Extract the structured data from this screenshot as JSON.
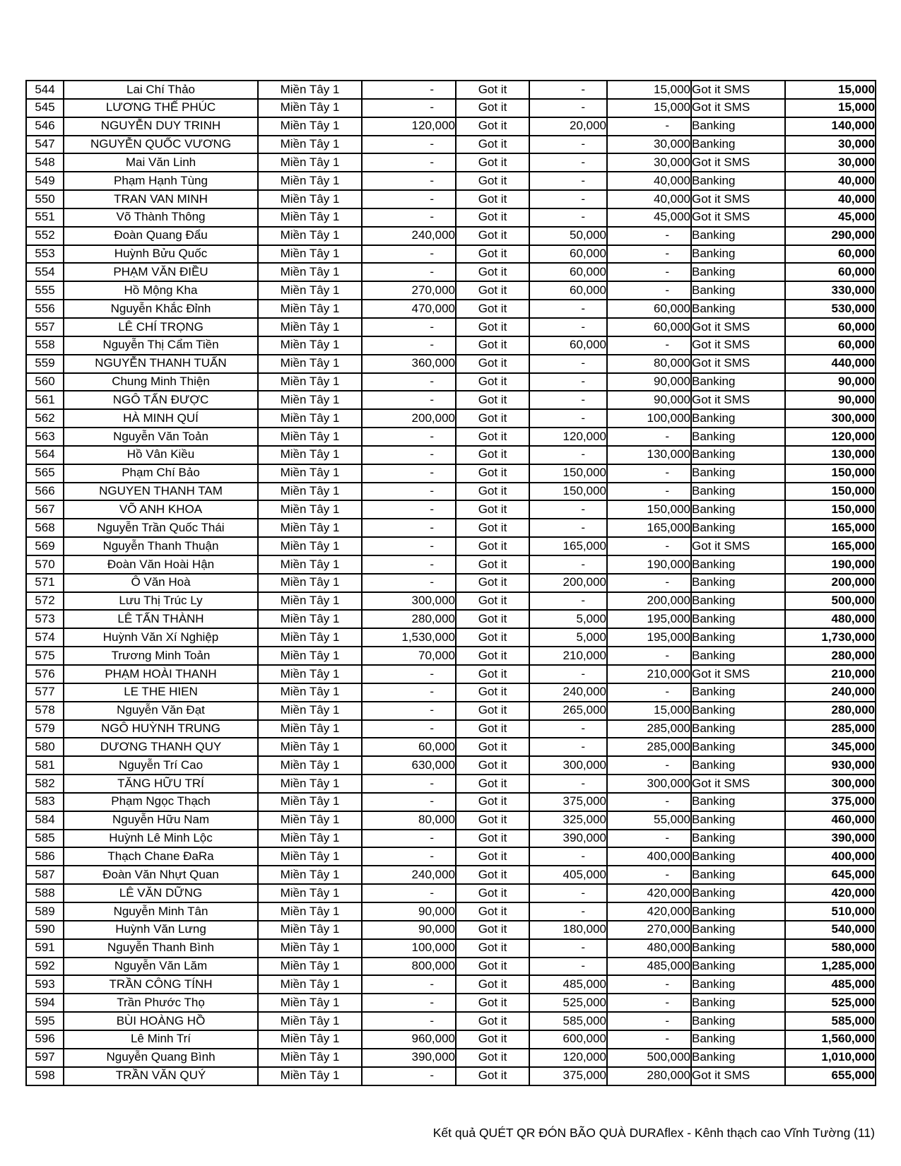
{
  "footer": {
    "text": "Kết quả QUÉT QR ĐÓN BÃO QUÀ DURAflex - Kênh thạch cao Vĩnh Tường (11)"
  },
  "table": {
    "rows": [
      [
        "544",
        "Lai Chí Thảo",
        "Miền Tây 1",
        "-",
        "Got it",
        "-",
        "15,000",
        "Got it SMS",
        "15,000"
      ],
      [
        "545",
        "LƯƠNG THẾ PHÚC",
        "Miền Tây 1",
        "-",
        "Got it",
        "-",
        "15,000",
        "Got it SMS",
        "15,000"
      ],
      [
        "546",
        "NGUYỄN DUY TRINH",
        "Miền Tây 1",
        "120,000",
        "Got it",
        "20,000",
        "-",
        "Banking",
        "140,000"
      ],
      [
        "547",
        "NGUYỄN QUỐC VƯƠNG",
        "Miền Tây 1",
        "-",
        "Got it",
        "-",
        "30,000",
        "Banking",
        "30,000"
      ],
      [
        "548",
        "Mai Văn Linh",
        "Miền Tây 1",
        "-",
        "Got it",
        "-",
        "30,000",
        "Got it SMS",
        "30,000"
      ],
      [
        "549",
        "Phạm Hạnh Tùng",
        "Miền Tây 1",
        "-",
        "Got it",
        "-",
        "40,000",
        "Banking",
        "40,000"
      ],
      [
        "550",
        "TRAN VAN MINH",
        "Miền Tây 1",
        "-",
        "Got it",
        "-",
        "40,000",
        "Got it SMS",
        "40,000"
      ],
      [
        "551",
        "Võ Thành Thông",
        "Miền Tây 1",
        "-",
        "Got it",
        "-",
        "45,000",
        "Got it SMS",
        "45,000"
      ],
      [
        "552",
        "Đoàn Quang Đẩu",
        "Miền Tây 1",
        "240,000",
        "Got it",
        "50,000",
        "-",
        "Banking",
        "290,000"
      ],
      [
        "553",
        "Huỳnh Bửu Quốc",
        "Miền Tây 1",
        "-",
        "Got it",
        "60,000",
        "-",
        "Banking",
        "60,000"
      ],
      [
        "554",
        "PHẠM VĂN ĐIỀU",
        "Miền Tây 1",
        "-",
        "Got it",
        "60,000",
        "-",
        "Banking",
        "60,000"
      ],
      [
        "555",
        "Hồ Mộng Kha",
        "Miền Tây 1",
        "270,000",
        "Got it",
        "60,000",
        "-",
        "Banking",
        "330,000"
      ],
      [
        "556",
        "Nguyễn Khắc Đỉnh",
        "Miền Tây 1",
        "470,000",
        "Got it",
        "-",
        "60,000",
        "Banking",
        "530,000"
      ],
      [
        "557",
        "LÊ CHÍ TRỌNG",
        "Miền Tây 1",
        "-",
        "Got it",
        "-",
        "60,000",
        "Got it SMS",
        "60,000"
      ],
      [
        "558",
        "Nguyễn Thị Cẩm Tiền",
        "Miền Tây 1",
        "-",
        "Got it",
        "60,000",
        "-",
        "Got it SMS",
        "60,000"
      ],
      [
        "559",
        "NGUYỄN THANH TUẤN",
        "Miền Tây 1",
        "360,000",
        "Got it",
        "-",
        "80,000",
        "Got it SMS",
        "440,000"
      ],
      [
        "560",
        "Chung Minh Thiện",
        "Miền Tây 1",
        "-",
        "Got it",
        "-",
        "90,000",
        "Banking",
        "90,000"
      ],
      [
        "561",
        "NGÔ TẤN ĐƯỢC",
        "Miền Tây 1",
        "-",
        "Got it",
        "-",
        "90,000",
        "Got it SMS",
        "90,000"
      ],
      [
        "562",
        "HÀ MINH QUÍ",
        "Miền Tây 1",
        "200,000",
        "Got it",
        "-",
        "100,000",
        "Banking",
        "300,000"
      ],
      [
        "563",
        "Nguyễn Văn Toản",
        "Miền Tây 1",
        "-",
        "Got it",
        "120,000",
        "-",
        "Banking",
        "120,000"
      ],
      [
        "564",
        "Hồ Vân Kiều",
        "Miền Tây 1",
        "-",
        "Got it",
        "-",
        "130,000",
        "Banking",
        "130,000"
      ],
      [
        "565",
        "Phạm  Chí Bảo",
        "Miền Tây 1",
        "-",
        "Got it",
        "150,000",
        "-",
        "Banking",
        "150,000"
      ],
      [
        "566",
        "NGUYEN THANH TAM",
        "Miền Tây 1",
        "-",
        "Got it",
        "150,000",
        "-",
        "Banking",
        "150,000"
      ],
      [
        "567",
        "VÕ ANH KHOA",
        "Miền Tây 1",
        "-",
        "Got it",
        "-",
        "150,000",
        "Banking",
        "150,000"
      ],
      [
        "568",
        "Nguyễn Trần Quốc Thái",
        "Miền Tây 1",
        "-",
        "Got it",
        "-",
        "165,000",
        "Banking",
        "165,000"
      ],
      [
        "569",
        "Nguyễn Thanh Thuận",
        "Miền Tây 1",
        "-",
        "Got it",
        "165,000",
        "-",
        "Got it SMS",
        "165,000"
      ],
      [
        "570",
        "Đoàn Văn Hoài Hận",
        "Miền Tây 1",
        "-",
        "Got it",
        "-",
        "190,000",
        "Banking",
        "190,000"
      ],
      [
        "571",
        "Ô Văn Hoà",
        "Miền Tây 1",
        "-",
        "Got it",
        "200,000",
        "-",
        "Banking",
        "200,000"
      ],
      [
        "572",
        "Lưu Thị Trúc Ly",
        "Miền Tây 1",
        "300,000",
        "Got it",
        "-",
        "200,000",
        "Banking",
        "500,000"
      ],
      [
        "573",
        "LÊ TẤN THÀNH",
        "Miền Tây 1",
        "280,000",
        "Got it",
        "5,000",
        "195,000",
        "Banking",
        "480,000"
      ],
      [
        "574",
        "Huỳnh Văn Xí Nghiệp",
        "Miền Tây 1",
        "1,530,000",
        "Got it",
        "5,000",
        "195,000",
        "Banking",
        "1,730,000"
      ],
      [
        "575",
        "Trương Minh Toản",
        "Miền Tây 1",
        "70,000",
        "Got it",
        "210,000",
        "-",
        "Banking",
        "280,000"
      ],
      [
        "576",
        "PHẠM HOÀI THANH",
        "Miền Tây 1",
        "-",
        "Got it",
        "-",
        "210,000",
        "Got it SMS",
        "210,000"
      ],
      [
        "577",
        "LE THE HIEN",
        "Miền Tây 1",
        "-",
        "Got it",
        "240,000",
        "-",
        "Banking",
        "240,000"
      ],
      [
        "578",
        "Nguyễn Văn Đạt",
        "Miền Tây 1",
        "-",
        "Got it",
        "265,000",
        "15,000",
        "Banking",
        "280,000"
      ],
      [
        "579",
        "NGÔ HUỲNH TRUNG",
        "Miền Tây 1",
        "-",
        "Got it",
        "-",
        "285,000",
        "Banking",
        "285,000"
      ],
      [
        "580",
        "DƯƠNG THANH QUY",
        "Miền Tây 1",
        "60,000",
        "Got it",
        "-",
        "285,000",
        "Banking",
        "345,000"
      ],
      [
        "581",
        "Nguyễn Trí Cao",
        "Miền Tây 1",
        "630,000",
        "Got it",
        "300,000",
        "-",
        "Banking",
        "930,000"
      ],
      [
        "582",
        "TĂNG HỮU TRÍ",
        "Miền Tây 1",
        "-",
        "Got it",
        "-",
        "300,000",
        "Got it SMS",
        "300,000"
      ],
      [
        "583",
        "Phạm Ngọc Thạch",
        "Miền Tây 1",
        "-",
        "Got it",
        "375,000",
        "-",
        "Banking",
        "375,000"
      ],
      [
        "584",
        "Nguyễn Hữu Nam",
        "Miền Tây 1",
        "80,000",
        "Got it",
        "325,000",
        "55,000",
        "Banking",
        "460,000"
      ],
      [
        "585",
        "Huỳnh Lê Minh Lộc",
        "Miền Tây 1",
        "-",
        "Got it",
        "390,000",
        "-",
        "Banking",
        "390,000"
      ],
      [
        "586",
        "Thạch Chane ĐaRa",
        "Miền Tây 1",
        "-",
        "Got it",
        "-",
        "400,000",
        "Banking",
        "400,000"
      ],
      [
        "587",
        "Đoàn Văn Nhựt Quan",
        "Miền Tây 1",
        "240,000",
        "Got it",
        "405,000",
        "-",
        "Banking",
        "645,000"
      ],
      [
        "588",
        "LÊ VĂN DỮNG",
        "Miền Tây 1",
        "-",
        "Got it",
        "-",
        "420,000",
        "Banking",
        "420,000"
      ],
      [
        "589",
        "Nguyễn Minh Tân",
        "Miền Tây 1",
        "90,000",
        "Got it",
        "-",
        "420,000",
        "Banking",
        "510,000"
      ],
      [
        "590",
        "Huỳnh Văn Lưng",
        "Miền Tây 1",
        "90,000",
        "Got it",
        "180,000",
        "270,000",
        "Banking",
        "540,000"
      ],
      [
        "591",
        "Nguyễn Thanh Bình",
        "Miền Tây 1",
        "100,000",
        "Got it",
        "-",
        "480,000",
        "Banking",
        "580,000"
      ],
      [
        "592",
        "Nguyễn Văn Lăm",
        "Miền Tây 1",
        "800,000",
        "Got it",
        "-",
        "485,000",
        "Banking",
        "1,285,000"
      ],
      [
        "593",
        "TRẦN CÔNG TÍNH",
        "Miền Tây 1",
        "-",
        "Got it",
        "485,000",
        "-",
        "Banking",
        "485,000"
      ],
      [
        "594",
        "Trần Phước Thọ",
        "Miền Tây 1",
        "-",
        "Got it",
        "525,000",
        "-",
        "Banking",
        "525,000"
      ],
      [
        "595",
        "BÙI HOÀNG HỒ",
        "Miền Tây 1",
        "-",
        "Got it",
        "585,000",
        "-",
        "Banking",
        "585,000"
      ],
      [
        "596",
        "Lê Minh Trí",
        "Miền Tây 1",
        "960,000",
        "Got it",
        "600,000",
        "-",
        "Banking",
        "1,560,000"
      ],
      [
        "597",
        "Nguyễn Quang Bình",
        "Miền Tây 1",
        "390,000",
        "Got it",
        "120,000",
        "500,000",
        "Banking",
        "1,010,000"
      ],
      [
        "598",
        "TRẦN VĂN QUÝ",
        "Miền Tây 1",
        "-",
        "Got it",
        "375,000",
        "280,000",
        "Got it SMS",
        "655,000"
      ]
    ]
  }
}
